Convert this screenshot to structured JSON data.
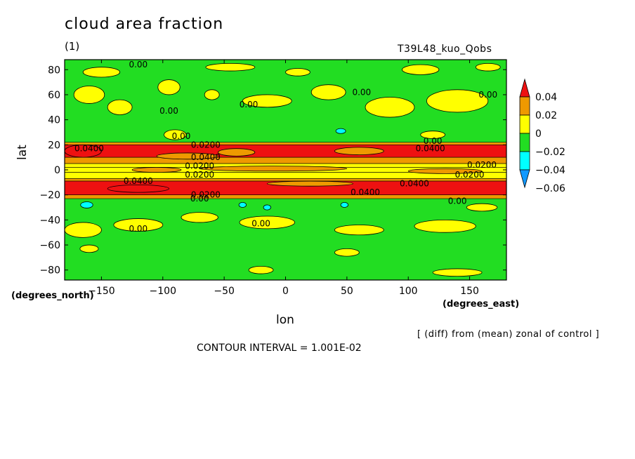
{
  "header": {
    "title": "cloud area fraction",
    "panel": "(1)",
    "run": "T39L48_kuo_Qobs"
  },
  "axes": {
    "ylabel": "lat",
    "xlabel": "lon",
    "y_coord_name": "(degrees_north)",
    "x_coord_name": "(degrees_east)"
  },
  "footer": {
    "diff_note": "[ (diff) from (mean) zonal of control ]",
    "contour_interval": "CONTOUR INTERVAL = 1.001E-02"
  },
  "colors": {
    "red": "#ee1111",
    "orange": "#ee9900",
    "yellow": "#ffff00",
    "green": "#22dd22",
    "cyan": "#00ffff",
    "blue": "#1199ff"
  },
  "chart_data": {
    "type": "heatmap",
    "title": "cloud area fraction",
    "subtitle": "T39L48_kuo_Qobs",
    "xlabel": "lon",
    "ylabel": "lat",
    "xlim": [
      -180,
      180
    ],
    "ylim": [
      -88,
      88
    ],
    "x_ticks": [
      -150,
      -100,
      -50,
      0,
      50,
      100,
      150
    ],
    "y_ticks": [
      80,
      60,
      40,
      20,
      0,
      -20,
      -40,
      -60,
      -80
    ],
    "colorbar": {
      "levels": [
        0.04,
        0.02,
        0,
        -0.02,
        -0.04,
        -0.06
      ],
      "labels": [
        "0.04",
        "0.02",
        "0",
        "−0.02",
        "−0.04",
        "−0.06"
      ],
      "fills": [
        "#ee1111",
        "#ee9900",
        "#ffff00",
        "#22dd22",
        "#00ffff",
        "#1199ff"
      ]
    },
    "background_value": -0.01,
    "zonal_bands": [
      {
        "lat_from": 22,
        "lat_to": 20,
        "value": 0.03
      },
      {
        "lat_from": 20,
        "lat_to": 10,
        "value": 0.045
      },
      {
        "lat_from": 10,
        "lat_to": 5,
        "value": 0.03
      },
      {
        "lat_from": 5,
        "lat_to": 2,
        "value": 0.01
      },
      {
        "lat_from": 2,
        "lat_to": -2,
        "value": 0.005
      },
      {
        "lat_from": -2,
        "lat_to": -7,
        "value": 0.01
      },
      {
        "lat_from": -7,
        "lat_to": -9,
        "value": 0.03
      },
      {
        "lat_from": -9,
        "lat_to": -20,
        "value": 0.045
      },
      {
        "lat_from": -20,
        "lat_to": -23,
        "value": 0.03
      }
    ],
    "patches": [
      {
        "lon": -10,
        "lat": 1,
        "w": 120,
        "h": 4,
        "value": 0.03
      },
      {
        "lon": -105,
        "lat": 0,
        "w": 40,
        "h": 4,
        "value": 0.02
      },
      {
        "lon": 130,
        "lat": -1,
        "w": 60,
        "h": 4,
        "value": 0.02
      },
      {
        "lon": -165,
        "lat": 15,
        "w": 30,
        "h": 10,
        "value": 0.045
      },
      {
        "lon": -40,
        "lat": 14,
        "w": 30,
        "h": 6,
        "value": 0.02
      },
      {
        "lon": 60,
        "lat": 15,
        "w": 40,
        "h": 6,
        "value": 0.02
      },
      {
        "lon": -80,
        "lat": 11,
        "w": 50,
        "h": 5,
        "value": 0.03
      },
      {
        "lon": -120,
        "lat": -15,
        "w": 50,
        "h": 6,
        "value": 0.045
      },
      {
        "lon": 20,
        "lat": -11,
        "w": 70,
        "h": 4,
        "value": 0.03
      },
      {
        "lon": -150,
        "lat": 78,
        "w": 30,
        "h": 8,
        "value": 0.01
      },
      {
        "lon": -45,
        "lat": 82,
        "w": 40,
        "h": 6,
        "value": 0.01
      },
      {
        "lon": 10,
        "lat": 78,
        "w": 20,
        "h": 6,
        "value": 0.01
      },
      {
        "lon": 110,
        "lat": 80,
        "w": 30,
        "h": 8,
        "value": 0.01
      },
      {
        "lon": 165,
        "lat": 82,
        "w": 20,
        "h": 6,
        "value": 0.01
      },
      {
        "lon": -160,
        "lat": 60,
        "w": 25,
        "h": 14,
        "value": 0.01
      },
      {
        "lon": -135,
        "lat": 50,
        "w": 20,
        "h": 12,
        "value": 0.01
      },
      {
        "lon": -95,
        "lat": 66,
        "w": 18,
        "h": 12,
        "value": 0.01
      },
      {
        "lon": -60,
        "lat": 60,
        "w": 12,
        "h": 8,
        "value": 0.01
      },
      {
        "lon": -15,
        "lat": 55,
        "w": 40,
        "h": 10,
        "value": 0.01
      },
      {
        "lon": 35,
        "lat": 62,
        "w": 28,
        "h": 12,
        "value": 0.01
      },
      {
        "lon": 85,
        "lat": 50,
        "w": 40,
        "h": 16,
        "value": 0.01
      },
      {
        "lon": 140,
        "lat": 55,
        "w": 50,
        "h": 18,
        "value": 0.01
      },
      {
        "lon": -90,
        "lat": 28,
        "w": 18,
        "h": 8,
        "value": 0.01
      },
      {
        "lon": 120,
        "lat": 28,
        "w": 20,
        "h": 6,
        "value": 0.01
      },
      {
        "lon": -165,
        "lat": -48,
        "w": 30,
        "h": 12,
        "value": 0.01
      },
      {
        "lon": -120,
        "lat": -44,
        "w": 40,
        "h": 10,
        "value": 0.01
      },
      {
        "lon": -70,
        "lat": -38,
        "w": 30,
        "h": 8,
        "value": 0.01
      },
      {
        "lon": -15,
        "lat": -42,
        "w": 45,
        "h": 10,
        "value": 0.01
      },
      {
        "lon": 60,
        "lat": -48,
        "w": 40,
        "h": 8,
        "value": 0.01
      },
      {
        "lon": 130,
        "lat": -45,
        "w": 50,
        "h": 10,
        "value": 0.01
      },
      {
        "lon": 160,
        "lat": -30,
        "w": 25,
        "h": 6,
        "value": 0.01
      },
      {
        "lon": -160,
        "lat": -63,
        "w": 15,
        "h": 6,
        "value": 0.01
      },
      {
        "lon": 50,
        "lat": -66,
        "w": 20,
        "h": 6,
        "value": 0.01
      },
      {
        "lon": 140,
        "lat": -82,
        "w": 40,
        "h": 6,
        "value": 0.01
      },
      {
        "lon": -20,
        "lat": -80,
        "w": 20,
        "h": 6,
        "value": 0.01
      },
      {
        "lon": -162,
        "lat": -28,
        "w": 10,
        "h": 5,
        "value": -0.03
      },
      {
        "lon": -35,
        "lat": -28,
        "w": 6,
        "h": 4,
        "value": -0.03
      },
      {
        "lon": -15,
        "lat": -30,
        "w": 6,
        "h": 4,
        "value": -0.03
      },
      {
        "lon": 48,
        "lat": -28,
        "w": 6,
        "h": 4,
        "value": -0.03
      },
      {
        "lon": 45,
        "lat": 31,
        "w": 8,
        "h": 4,
        "value": -0.03
      }
    ],
    "contour_labels": [
      {
        "lon": -120,
        "lat": 84,
        "text": "0.00"
      },
      {
        "lon": -95,
        "lat": 47,
        "text": "0.00"
      },
      {
        "lon": -30,
        "lat": 52,
        "text": "0.00"
      },
      {
        "lon": 62,
        "lat": 62,
        "text": "0.00"
      },
      {
        "lon": 165,
        "lat": 60,
        "text": "0.00"
      },
      {
        "lon": -85,
        "lat": 27,
        "text": "0.00"
      },
      {
        "lon": 120,
        "lat": 23,
        "text": "0.00"
      },
      {
        "lon": -160,
        "lat": 17,
        "text": "0.0400"
      },
      {
        "lon": -65,
        "lat": 20,
        "text": "0.0200"
      },
      {
        "lon": -65,
        "lat": 10,
        "text": "0.0400"
      },
      {
        "lon": -70,
        "lat": 3,
        "text": "0.0200"
      },
      {
        "lon": -70,
        "lat": -4,
        "text": "0.0200"
      },
      {
        "lon": 118,
        "lat": 17,
        "text": "0.0400"
      },
      {
        "lon": 160,
        "lat": 4,
        "text": "0.0200"
      },
      {
        "lon": 150,
        "lat": -4,
        "text": "0.0200"
      },
      {
        "lon": -120,
        "lat": -9,
        "text": "0.0400"
      },
      {
        "lon": 65,
        "lat": -18,
        "text": "0.0400"
      },
      {
        "lon": 105,
        "lat": -11,
        "text": "0.0400"
      },
      {
        "lon": -65,
        "lat": -20,
        "text": "0.0200"
      },
      {
        "lon": -70,
        "lat": -23,
        "text": "0.00"
      },
      {
        "lon": 140,
        "lat": -25,
        "text": "0.00"
      },
      {
        "lon": -120,
        "lat": -47,
        "text": "0.00"
      },
      {
        "lon": -20,
        "lat": -43,
        "text": "0.00"
      }
    ]
  }
}
